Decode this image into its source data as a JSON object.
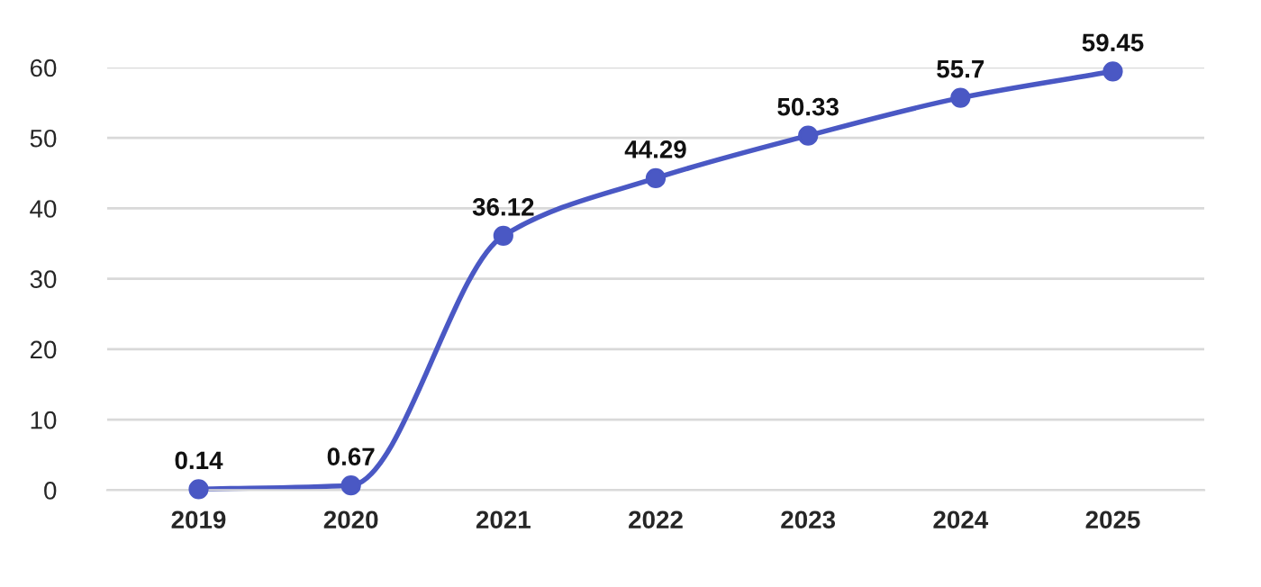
{
  "chart_data": {
    "type": "line",
    "categories": [
      "2019",
      "2020",
      "2021",
      "2022",
      "2023",
      "2024",
      "2025"
    ],
    "series": [
      {
        "color": "#4a58c4",
        "values": [
          0.14,
          0.67,
          36.12,
          44.29,
          50.33,
          55.7,
          59.45
        ]
      }
    ],
    "ylim": [
      0,
      60
    ],
    "yticks": [
      0,
      10,
      20,
      30,
      40,
      50,
      60
    ],
    "grid": "y",
    "marker": "circle",
    "line_style": "solid",
    "data_labels": true,
    "legend": false
  }
}
